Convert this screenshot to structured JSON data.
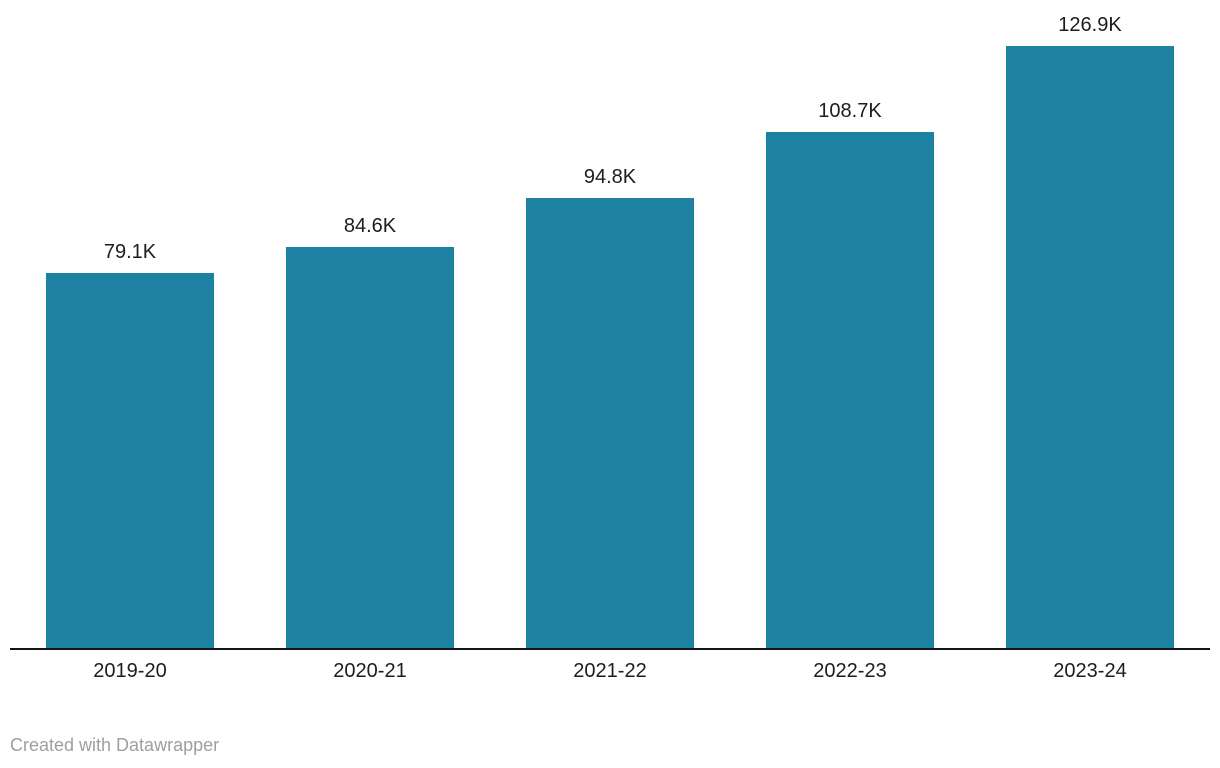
{
  "chart_data": {
    "type": "bar",
    "categories": [
      "2019-20",
      "2020-21",
      "2021-22",
      "2022-23",
      "2023-24"
    ],
    "values": [
      79.1,
      84.6,
      94.8,
      108.7,
      126.9
    ],
    "unit": "K",
    "value_labels": [
      "79.1K",
      "84.6K",
      "94.8K",
      "108.7K",
      "126.9K"
    ],
    "title": "",
    "xlabel": "",
    "ylabel": "",
    "ylim": [
      0,
      126.9
    ],
    "grid": false,
    "legend": false,
    "y_axis_shown": false,
    "baseline_shown": true,
    "bar_color": "#1d81a2"
  },
  "colors": {
    "bar": "#1d81a2",
    "axis_line": "#141414",
    "value_label": "#1d1d1d",
    "tick_label": "#1d1d1d",
    "attribution_text": "#9e9e9e",
    "background": "#ffffff"
  },
  "footer": {
    "attribution": "Created with Datawrapper"
  }
}
